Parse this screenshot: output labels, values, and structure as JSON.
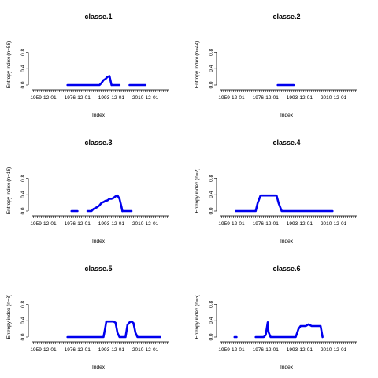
{
  "chart_data": [
    {
      "type": "line",
      "title": "classe.1",
      "xlabel": "Index",
      "ylabel": "Entropy index (n=58)",
      "ylim": [
        0,
        1
      ],
      "yticks": [
        "0.0",
        "0.4",
        "0.8"
      ],
      "xticks": [
        "1959-12-01",
        "1976-12-01",
        "1993-12-01",
        "2010-12-01"
      ],
      "series": [
        {
          "segments": [
            {
              "x": [
                "1972-01",
                "1988-01",
                "1989-01",
                "1990-01",
                "1991-01",
                "1992-01",
                "1993-01",
                "1994-01"
              ],
              "y": [
                0,
                0,
                0.05,
                0.12,
                0.15,
                0.2,
                0.22,
                0
              ]
            },
            {
              "x": [
                "1994-06",
                "1998-01"
              ],
              "y": [
                0,
                0
              ]
            },
            {
              "x": [
                "2003-01",
                "2011-01"
              ],
              "y": [
                0,
                0
              ]
            }
          ]
        }
      ]
    },
    {
      "type": "line",
      "title": "classe.2",
      "xlabel": "Index",
      "ylabel": "Entropy index (n=44)",
      "ylim": [
        0,
        1
      ],
      "yticks": [
        "0.0",
        "0.4",
        "0.8"
      ],
      "xticks": [
        "1959-12-01",
        "1976-12-01",
        "1993-12-01",
        "2010-12-01"
      ],
      "series": [
        {
          "segments": [
            {
              "x": [
                "1983-01",
                "1991-01"
              ],
              "y": [
                0,
                0
              ]
            }
          ]
        }
      ]
    },
    {
      "type": "line",
      "title": "classe.3",
      "xlabel": "Index",
      "ylabel": "Entropy index (n=18)",
      "ylim": [
        0,
        1
      ],
      "yticks": [
        "0.0",
        "0.4",
        "0.8"
      ],
      "xticks": [
        "1959-12-01",
        "1976-12-01",
        "1993-12-01",
        "2010-12-01"
      ],
      "series": [
        {
          "segments": [
            {
              "x": [
                "1974-01",
                "1977-01"
              ],
              "y": [
                0,
                0
              ]
            },
            {
              "x": [
                "1982-01",
                "1984-01",
                "1985-01",
                "1987-01",
                "1988-01",
                "1989-01",
                "1990-01",
                "1991-01",
                "1992-01",
                "1993-01",
                "1994-01",
                "1995-01",
                "1996-01",
                "1997-01",
                "1998-01",
                "1999-01",
                "1999-06"
              ],
              "y": [
                0,
                0,
                0.05,
                0.1,
                0.14,
                0.2,
                0.22,
                0.25,
                0.26,
                0.3,
                0.3,
                0.32,
                0.36,
                0.38,
                0.3,
                0.1,
                0
              ]
            },
            {
              "x": [
                "1999-06",
                "2004-01"
              ],
              "y": [
                0,
                0
              ]
            }
          ]
        }
      ]
    },
    {
      "type": "line",
      "title": "classe.4",
      "xlabel": "Index",
      "ylabel": "Entropy index (n=2)",
      "ylim": [
        0,
        1
      ],
      "yticks": [
        "0.0",
        "0.4",
        "0.8"
      ],
      "xticks": [
        "1959-12-01",
        "1976-12-01",
        "1993-12-01",
        "2010-12-01"
      ],
      "series": [
        {
          "segments": [
            {
              "x": [
                "1962-01",
                "1972-01",
                "1973-01",
                "1974-06",
                "1982-06",
                "1983-06",
                "1985-01",
                "2010-06"
              ],
              "y": [
                0,
                0,
                0.2,
                0.38,
                0.38,
                0.2,
                0,
                0
              ]
            }
          ]
        }
      ]
    },
    {
      "type": "line",
      "title": "classe.5",
      "xlabel": "Index",
      "ylabel": "Entropy index (n=3)",
      "ylim": [
        0,
        1
      ],
      "yticks": [
        "0.0",
        "0.4",
        "0.8"
      ],
      "xticks": [
        "1959-12-01",
        "1976-12-01",
        "1993-12-01",
        "2010-12-01"
      ],
      "series": [
        {
          "segments": [
            {
              "x": [
                "1972-01",
                "1990-01",
                "1990-10",
                "1991-06",
                "1995-01",
                "1996-01",
                "1997-01",
                "1998-01",
                "2000-01",
                "2001-01",
                "2002-01",
                "2003-01",
                "2004-01",
                "2005-01",
                "2006-01",
                "2007-01",
                "2018-06"
              ],
              "y": [
                0,
                0,
                0.2,
                0.38,
                0.38,
                0.35,
                0.1,
                0,
                0,
                0,
                0.3,
                0.36,
                0.38,
                0.34,
                0.1,
                0,
                0
              ]
            }
          ]
        }
      ]
    },
    {
      "type": "line",
      "title": "classe.6",
      "xlabel": "Index",
      "ylabel": "Entropy index (n=5)",
      "ylim": [
        0,
        1
      ],
      "yticks": [
        "0.0",
        "0.4",
        "0.8"
      ],
      "xticks": [
        "1959-12-01",
        "1976-12-01",
        "1993-12-01",
        "2010-12-01"
      ],
      "series": [
        {
          "segments": [
            {
              "x": [
                "1961-06",
                "1962-06"
              ],
              "y": [
                0,
                0
              ]
            },
            {
              "x": [
                "1972-01",
                "1976-01",
                "1977-01",
                "1978-01",
                "1978-06",
                "1979-06",
                "1980-06",
                "1992-01",
                "1993-06",
                "1994-06",
                "1997-01",
                "1998-06",
                "2000-01",
                "2004-06",
                "2005-06"
              ],
              "y": [
                0,
                0,
                0.05,
                0.36,
                0.12,
                0,
                0,
                0,
                0.2,
                0.27,
                0.27,
                0.31,
                0.27,
                0.27,
                0
              ]
            }
          ]
        }
      ]
    }
  ]
}
